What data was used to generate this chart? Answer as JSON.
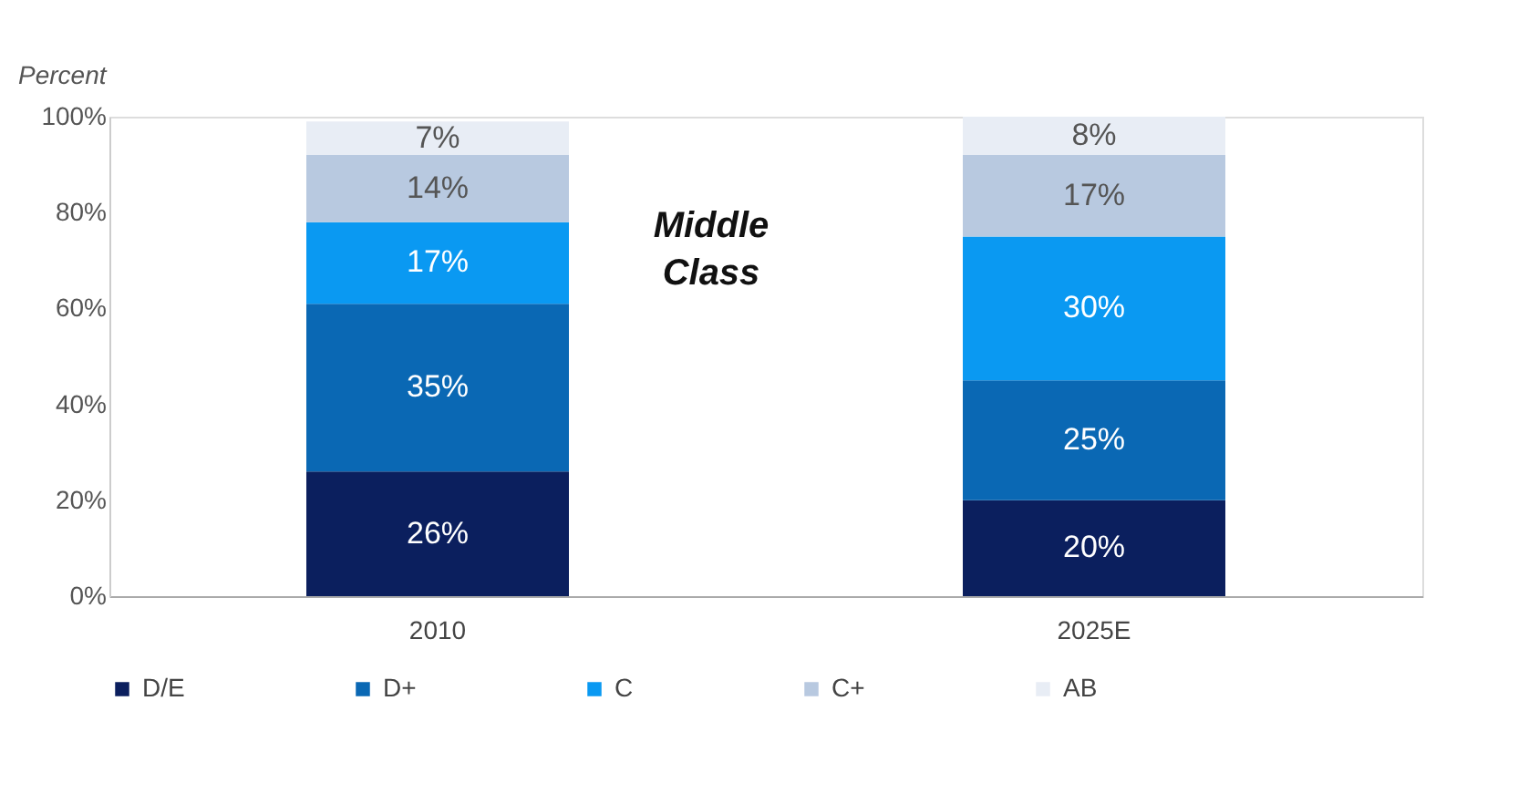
{
  "chart_data": {
    "type": "bar",
    "stacked": true,
    "ylabel": "Percent",
    "categories": [
      "2010",
      "2025E"
    ],
    "series": [
      {
        "name": "D/E",
        "color": "#0b1f5e",
        "values": [
          26,
          20
        ],
        "value_labels": [
          "26%",
          "20%"
        ]
      },
      {
        "name": "D+",
        "color": "#0a68b4",
        "values": [
          35,
          25
        ],
        "value_labels": [
          "35%",
          "25%"
        ]
      },
      {
        "name": "C",
        "color": "#0a99f2",
        "values": [
          17,
          30
        ],
        "value_labels": [
          "17%",
          "30%"
        ]
      },
      {
        "name": "C+",
        "color": "#b8c9e0",
        "values": [
          14,
          17
        ],
        "value_labels": [
          "14%",
          "17%"
        ]
      },
      {
        "name": "AB",
        "color": "#e8edf5",
        "values": [
          7,
          8
        ],
        "value_labels": [
          "7%",
          "8%"
        ]
      }
    ],
    "ylim": [
      0,
      100
    ],
    "yticks": [
      {
        "value": 0,
        "label": "0%"
      },
      {
        "value": 20,
        "label": "20%"
      },
      {
        "value": 40,
        "label": "40%"
      },
      {
        "value": 60,
        "label": "60%"
      },
      {
        "value": 80,
        "label": "80%"
      },
      {
        "value": 100,
        "label": "100%"
      }
    ],
    "annotations": [
      "Middle Class"
    ],
    "grid": false,
    "legend": "bottom"
  }
}
